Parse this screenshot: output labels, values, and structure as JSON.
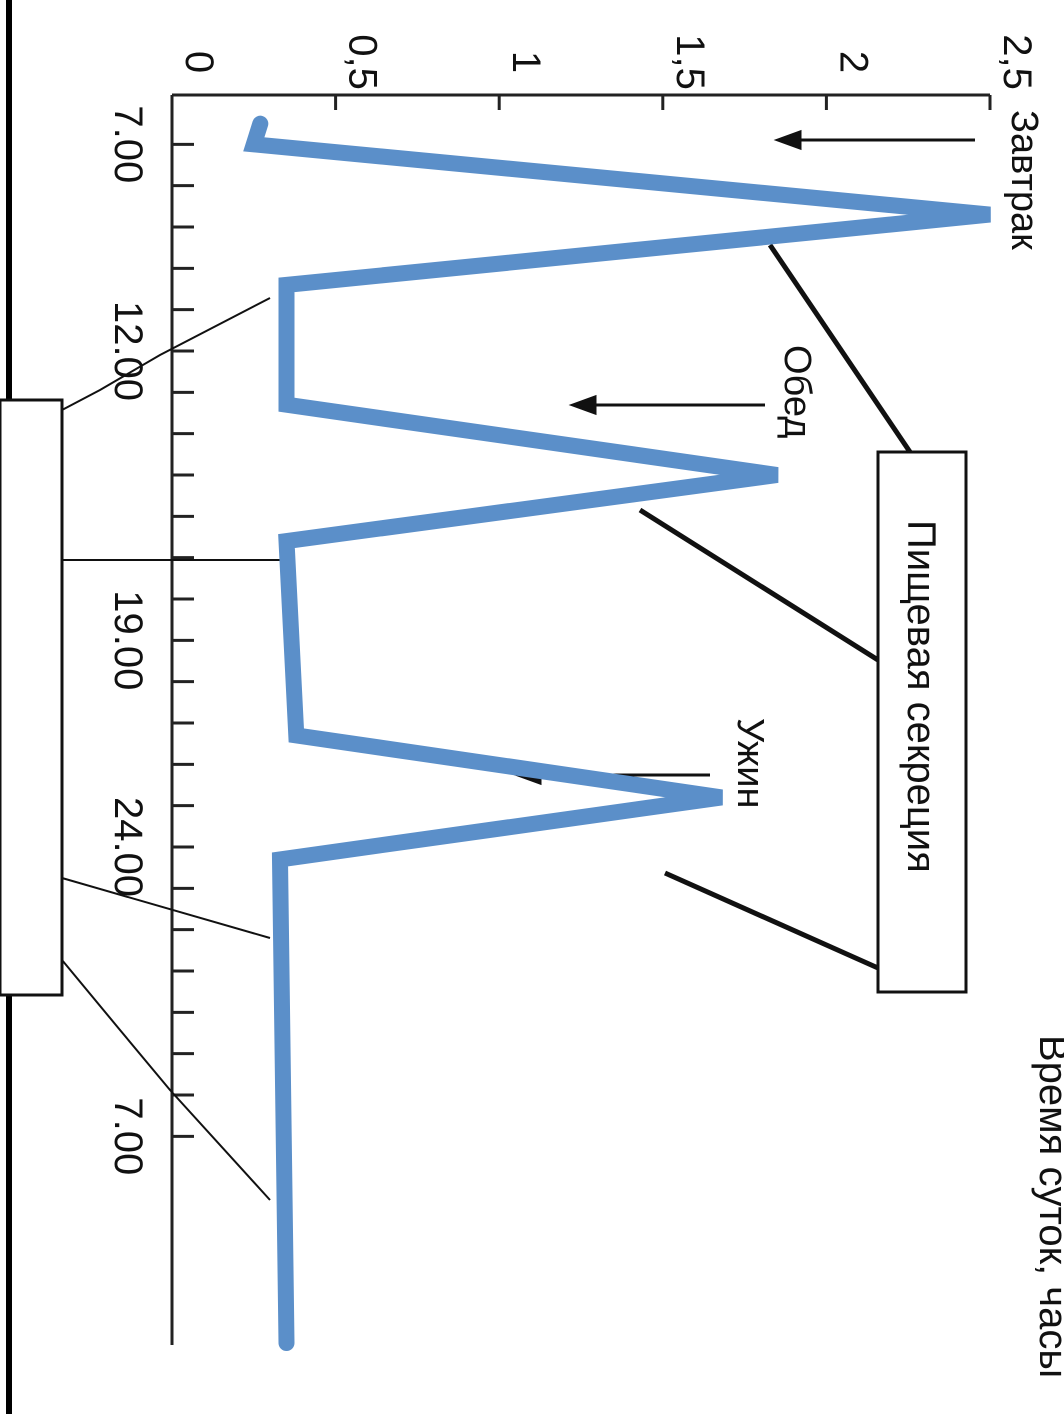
{
  "chart_data": {
    "type": "line",
    "orientation": "rotated-90-clockwise",
    "xlabel": "Время суток, часы",
    "ylabel": "",
    "x_ticks_labeled": [
      "7.00",
      "12.00",
      "19.00",
      "24.00",
      "7.00"
    ],
    "y_ticks_labeled": [
      "0",
      "0,5",
      "1",
      "1,5",
      "2",
      "2,5"
    ],
    "ylim": [
      0,
      2.5
    ],
    "grid": false,
    "series": [
      {
        "color": "#5B8FC9",
        "points": [
          {
            "x": 6.5,
            "y": 0.27
          },
          {
            "x": 7.0,
            "y": 0.25
          },
          {
            "x": 8.7,
            "y": 2.5
          },
          {
            "x": 10.4,
            "y": 0.35
          },
          {
            "x": 13.3,
            "y": 0.35
          },
          {
            "x": 15.0,
            "y": 1.85
          },
          {
            "x": 16.6,
            "y": 0.35
          },
          {
            "x": 21.3,
            "y": 0.38
          },
          {
            "x": 22.8,
            "y": 1.68
          },
          {
            "x": 24.3,
            "y": 0.33
          },
          {
            "x": 36.0,
            "y": 0.35
          }
        ]
      }
    ],
    "annotations": {
      "meals": [
        "Завтрак",
        "Обед",
        "Ужин"
      ],
      "secretion_box": "Пищевая секреция"
    }
  }
}
